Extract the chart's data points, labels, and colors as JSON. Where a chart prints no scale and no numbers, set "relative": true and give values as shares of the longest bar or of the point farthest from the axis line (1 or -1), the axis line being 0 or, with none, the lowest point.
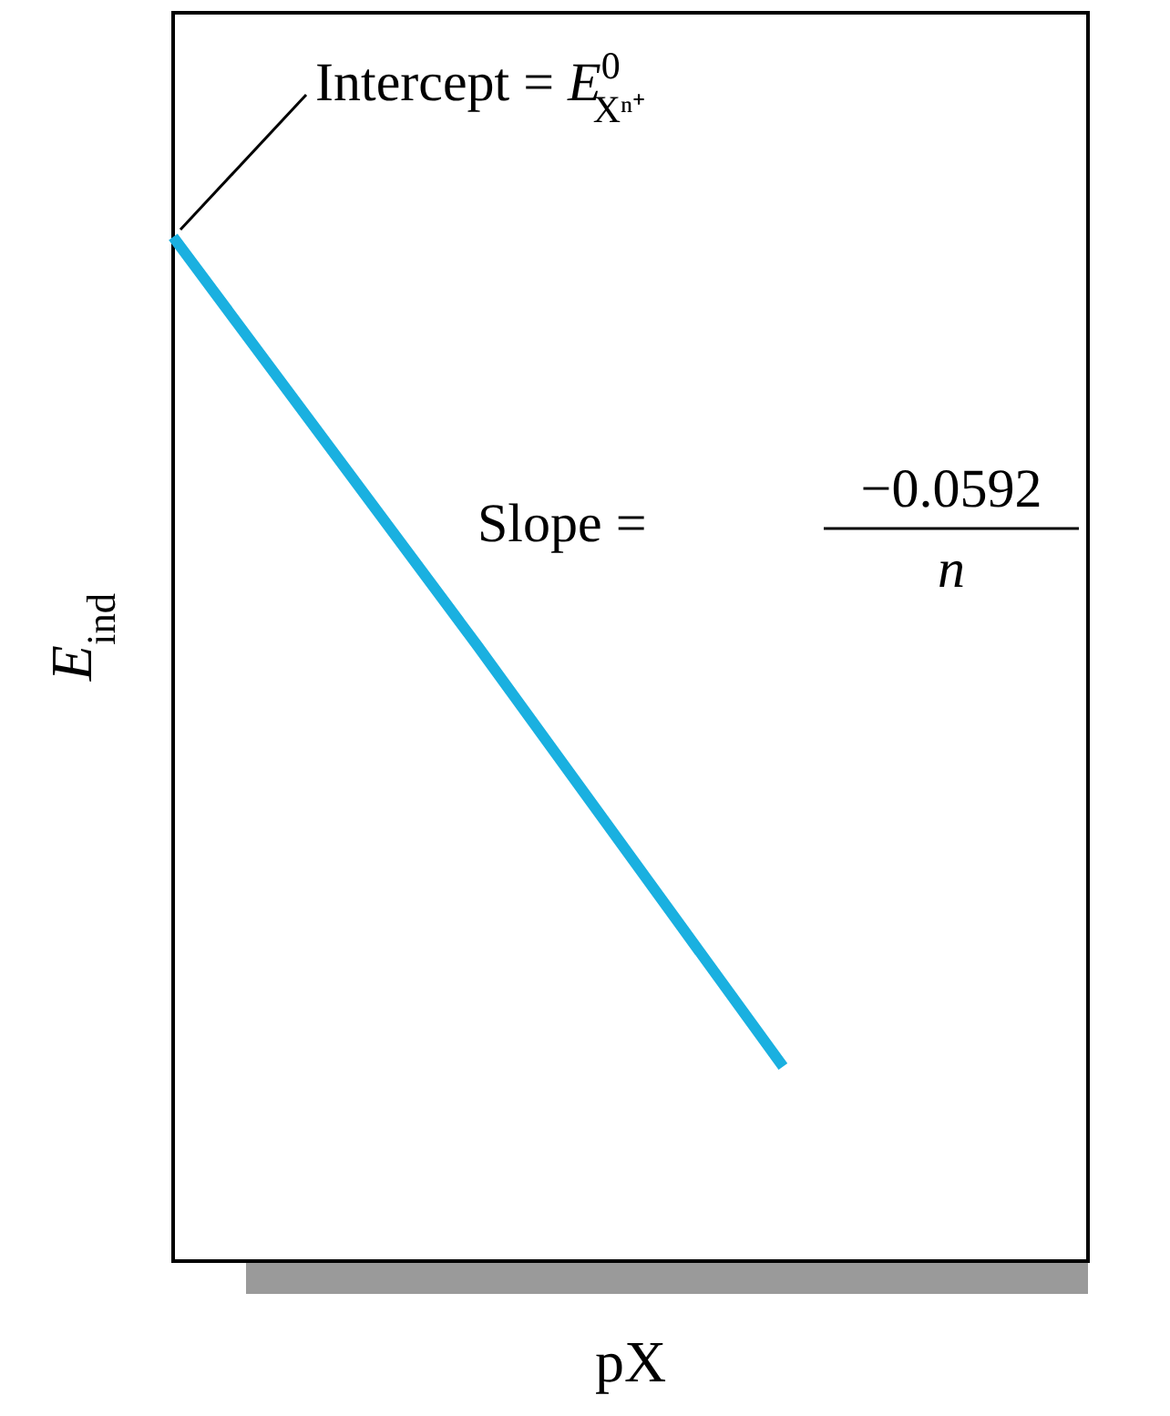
{
  "chart_data": {
    "type": "line",
    "relative": true,
    "xlabel": "pX",
    "ylabel": "E$_{ind}$",
    "categories": [
      null,
      null,
      null,
      null
    ],
    "marker": "none",
    "line_style": "solid",
    "series": [
      {
        "color": "#1ab0e0",
        "values": [
          1,
          0.6,
          0.19,
          null
        ]
      }
    ],
    "annotations": [
      "Intercept = E$^{0}$$_{Xⁿ⁺}$",
      "Slope =",
      "−0.0592",
      "n"
    ]
  }
}
